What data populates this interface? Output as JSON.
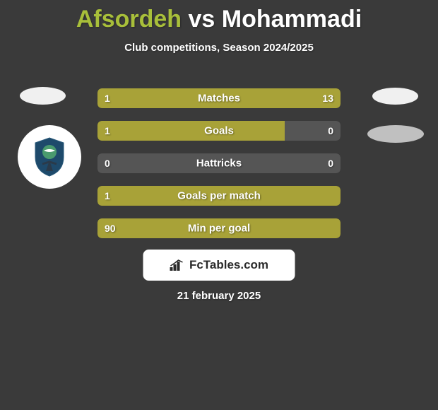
{
  "title": {
    "player1": "Afsordeh",
    "vs": "vs",
    "player2": "Mohammadi"
  },
  "subtitle": "Club competitions, Season 2024/2025",
  "colors": {
    "player1": "#a8a238",
    "player2": "#a8a238",
    "neutral": "#555555",
    "background": "#3a3a3a",
    "title_player1": "#a8bf3a",
    "title_rest": "#ffffff"
  },
  "bars": [
    {
      "label": "Matches",
      "left_value": "1",
      "right_value": "13",
      "left_pct": 19,
      "right_pct": 81,
      "left_color": "#a8a238",
      "right_color": "#a8a238"
    },
    {
      "label": "Goals",
      "left_value": "1",
      "right_value": "0",
      "left_pct": 77,
      "right_pct": 23,
      "left_color": "#a8a238",
      "right_color": "#555555"
    },
    {
      "label": "Hattricks",
      "left_value": "0",
      "right_value": "0",
      "left_pct": 100,
      "right_pct": 0,
      "left_color": "#555555",
      "right_color": "#555555"
    },
    {
      "label": "Goals per match",
      "left_value": "1",
      "right_value": "",
      "left_pct": 100,
      "right_pct": 0,
      "left_color": "#a8a238",
      "right_color": "#a8a238"
    },
    {
      "label": "Min per goal",
      "left_value": "90",
      "right_value": "",
      "left_pct": 100,
      "right_pct": 0,
      "left_color": "#a8a238",
      "right_color": "#a8a238"
    }
  ],
  "footer": {
    "brand": "FcTables.com"
  },
  "date": "21 february 2025"
}
